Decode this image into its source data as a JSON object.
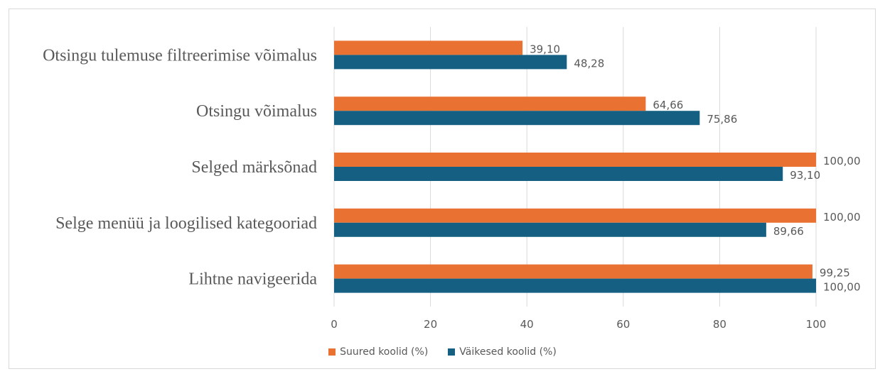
{
  "chart_data": {
    "type": "bar",
    "orientation": "horizontal",
    "categories": [
      "Otsingu tulemuse filtreerimise võimalus",
      "Otsingu võimalus",
      "Selged märksõnad",
      "Selge menüü ja loogilised kategooriad",
      "Lihtne navigeerida"
    ],
    "series": [
      {
        "name": "Suured koolid (%)",
        "color": "#E97132",
        "values": [
          39.1,
          64.66,
          100.0,
          100.0,
          99.25
        ],
        "labels": [
          "39,10",
          "64,66",
          "100,00",
          "100,00",
          "99,25"
        ]
      },
      {
        "name": "Väikesed koolid (%)",
        "color": "#156082",
        "values": [
          48.28,
          75.86,
          93.1,
          89.66,
          100.0
        ],
        "labels": [
          "48,28",
          "75,86",
          "93,10",
          "89,66",
          "100,00"
        ]
      }
    ],
    "xlim": [
      0,
      100
    ],
    "xticks": [
      "0",
      "20",
      "40",
      "60",
      "80",
      "100"
    ],
    "grid": true,
    "legend_position": "bottom"
  }
}
